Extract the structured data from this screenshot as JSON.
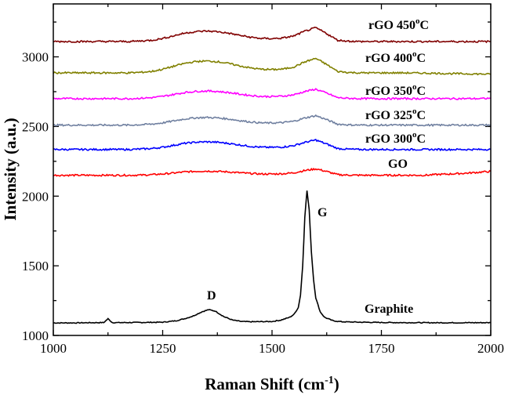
{
  "chart_data": {
    "type": "line",
    "xlabel": "Raman Shift (cm",
    "xlabel_sup": "-1",
    "xlabel_end": ")",
    "ylabel": "Intensity (a.u.)",
    "xlim": [
      1000,
      2000
    ],
    "ylim": [
      1000,
      3380
    ],
    "xticks": [
      1000,
      1250,
      1500,
      1750,
      2000
    ],
    "yticks": [
      1000,
      1500,
      2000,
      2500,
      3000
    ],
    "grid": false,
    "legend": "none",
    "annotations": {
      "D": "D",
      "G": "G"
    },
    "series": [
      {
        "name": "Graphite",
        "color": "#000000",
        "x": [
          1000,
          1050,
          1100,
          1115,
          1125,
          1135,
          1150,
          1200,
          1250,
          1280,
          1300,
          1320,
          1340,
          1355,
          1370,
          1390,
          1410,
          1430,
          1450,
          1500,
          1520,
          1540,
          1550,
          1560,
          1565,
          1570,
          1575,
          1580,
          1585,
          1590,
          1595,
          1600,
          1610,
          1620,
          1640,
          1660,
          1700,
          1750,
          1800,
          1900,
          2000
        ],
        "y": [
          1090,
          1090,
          1092,
          1092,
          1120,
          1092,
          1092,
          1093,
          1095,
          1105,
          1120,
          1140,
          1170,
          1185,
          1175,
          1135,
          1110,
          1100,
          1098,
          1100,
          1110,
          1130,
          1150,
          1200,
          1290,
          1500,
          1850,
          2040,
          1900,
          1600,
          1400,
          1270,
          1170,
          1130,
          1105,
          1098,
          1095,
          1093,
          1092,
          1091,
          1092
        ]
      },
      {
        "name": "GO",
        "color": "#ff0000",
        "x": [
          1000,
          1025,
          1050,
          1075,
          1100,
          1125,
          1150,
          1175,
          1200,
          1225,
          1250,
          1275,
          1300,
          1325,
          1350,
          1375,
          1400,
          1425,
          1450,
          1475,
          1500,
          1525,
          1550,
          1575,
          1600,
          1625,
          1650,
          1675,
          1700,
          1725,
          1750,
          1775,
          1800,
          1825,
          1850,
          1875,
          1900,
          1925,
          1950,
          1975,
          2000
        ],
        "y": [
          2150,
          2150,
          2150,
          2150,
          2150,
          2150,
          2150,
          2150,
          2151,
          2154,
          2159,
          2166,
          2174,
          2178,
          2180,
          2178,
          2174,
          2168,
          2163,
          2159,
          2159,
          2161,
          2168,
          2184,
          2196,
          2177,
          2154,
          2151,
          2150,
          2150,
          2150,
          2150,
          2150,
          2150,
          2150,
          2155,
          2158,
          2162,
          2166,
          2172,
          2178
        ]
      },
      {
        "name": "rGO 300",
        "color": "#0000ff",
        "x": [
          1000,
          1025,
          1050,
          1075,
          1100,
          1125,
          1150,
          1175,
          1200,
          1225,
          1250,
          1275,
          1300,
          1325,
          1350,
          1375,
          1400,
          1425,
          1450,
          1475,
          1500,
          1525,
          1550,
          1575,
          1600,
          1625,
          1650,
          1675,
          1700,
          1725,
          1750,
          1775,
          1800,
          1825,
          1850,
          1875,
          1900,
          1925,
          1950,
          1975,
          2000
        ],
        "y": [
          2335,
          2335,
          2335,
          2335,
          2335,
          2335,
          2335,
          2335,
          2338,
          2342,
          2351,
          2365,
          2379,
          2387,
          2390,
          2387,
          2379,
          2368,
          2358,
          2351,
          2350,
          2353,
          2363,
          2386,
          2403,
          2374,
          2342,
          2337,
          2335,
          2335,
          2335,
          2335,
          2335,
          2335,
          2335,
          2335,
          2335,
          2335,
          2335,
          2335,
          2336
        ]
      },
      {
        "name": "rGO 325",
        "color": "#7080a0",
        "x": [
          1000,
          1025,
          1050,
          1075,
          1100,
          1125,
          1150,
          1175,
          1200,
          1225,
          1250,
          1275,
          1300,
          1325,
          1350,
          1375,
          1400,
          1425,
          1450,
          1475,
          1500,
          1525,
          1550,
          1575,
          1600,
          1625,
          1650,
          1675,
          1700,
          1725,
          1750,
          1775,
          1800,
          1825,
          1850,
          1875,
          1900,
          1925,
          1950,
          1975,
          2000
        ],
        "y": [
          2510,
          2510,
          2510,
          2510,
          2510,
          2510,
          2510,
          2510,
          2513,
          2517,
          2526,
          2540,
          2554,
          2562,
          2565,
          2562,
          2554,
          2543,
          2533,
          2526,
          2525,
          2528,
          2538,
          2561,
          2578,
          2549,
          2517,
          2512,
          2510,
          2510,
          2510,
          2510,
          2510,
          2510,
          2510,
          2510,
          2510,
          2510,
          2510,
          2510,
          2511
        ]
      },
      {
        "name": "rGO 350",
        "color": "#ff00ff",
        "x": [
          1000,
          1025,
          1050,
          1075,
          1100,
          1125,
          1150,
          1175,
          1200,
          1225,
          1250,
          1275,
          1300,
          1325,
          1350,
          1375,
          1400,
          1425,
          1450,
          1475,
          1500,
          1525,
          1550,
          1575,
          1600,
          1625,
          1650,
          1675,
          1700,
          1725,
          1750,
          1775,
          1800,
          1825,
          1850,
          1875,
          1900,
          1925,
          1950,
          1975,
          2000
        ],
        "y": [
          2700,
          2700,
          2700,
          2700,
          2700,
          2700,
          2700,
          2700,
          2703,
          2707,
          2716,
          2730,
          2744,
          2752,
          2755,
          2752,
          2744,
          2733,
          2723,
          2716,
          2715,
          2718,
          2728,
          2751,
          2768,
          2739,
          2707,
          2702,
          2700,
          2700,
          2700,
          2700,
          2700,
          2700,
          2700,
          2700,
          2700,
          2700,
          2700,
          2700,
          2702
        ]
      },
      {
        "name": "rGO 400",
        "color": "#808000",
        "x": [
          1000,
          1025,
          1050,
          1075,
          1100,
          1125,
          1150,
          1175,
          1200,
          1225,
          1250,
          1275,
          1300,
          1325,
          1350,
          1375,
          1400,
          1425,
          1450,
          1475,
          1500,
          1525,
          1550,
          1575,
          1600,
          1625,
          1650,
          1675,
          1700,
          1725,
          1750,
          1775,
          1800,
          1825,
          1850,
          1875,
          1900,
          1925,
          1950,
          1975,
          2000
        ],
        "y": [
          2885,
          2885,
          2885,
          2885,
          2885,
          2885,
          2885,
          2885,
          2889,
          2895,
          2911,
          2932,
          2953,
          2966,
          2970,
          2966,
          2953,
          2936,
          2921,
          2911,
          2909,
          2912,
          2928,
          2964,
          2989,
          2945,
          2895,
          2888,
          2885,
          2885,
          2885,
          2885,
          2885,
          2884,
          2883,
          2882,
          2880,
          2879,
          2878,
          2877,
          2875
        ]
      },
      {
        "name": "rGO 450",
        "color": "#800000",
        "x": [
          1000,
          1025,
          1050,
          1075,
          1100,
          1125,
          1150,
          1175,
          1200,
          1225,
          1250,
          1275,
          1300,
          1325,
          1350,
          1375,
          1400,
          1425,
          1450,
          1475,
          1500,
          1525,
          1550,
          1575,
          1600,
          1625,
          1650,
          1675,
          1700,
          1725,
          1750,
          1775,
          1800,
          1825,
          1850,
          1875,
          1900,
          1925,
          1950,
          1975,
          2000
        ],
        "y": [
          3110,
          3110,
          3110,
          3110,
          3110,
          3110,
          3110,
          3110,
          3114,
          3119,
          3132,
          3151,
          3170,
          3181,
          3185,
          3181,
          3170,
          3155,
          3141,
          3132,
          3131,
          3135,
          3150,
          3184,
          3209,
          3167,
          3119,
          3113,
          3110,
          3110,
          3110,
          3110,
          3110,
          3110,
          3110,
          3110,
          3110,
          3110,
          3110,
          3110,
          3110
        ]
      }
    ],
    "series_labels": [
      {
        "text": "Graphite",
        "sup": "",
        "end": ""
      },
      {
        "text": "GO",
        "sup": "",
        "end": ""
      },
      {
        "text": "rGO 300",
        "sup": "o",
        "end": "C"
      },
      {
        "text": "rGO 325",
        "sup": "o",
        "end": "C"
      },
      {
        "text": "rGO 350",
        "sup": "o",
        "end": "C"
      },
      {
        "text": "rGO 400",
        "sup": "o",
        "end": "C"
      },
      {
        "text": "rGO 450",
        "sup": "o",
        "end": "C"
      }
    ]
  }
}
